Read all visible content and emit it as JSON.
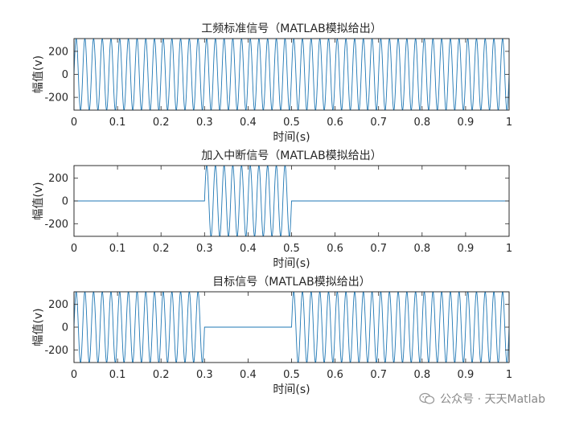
{
  "chart_data": [
    {
      "type": "line",
      "title": "工频标准信号（MATLAB模拟给出）",
      "xlabel": "时间(s)",
      "ylabel": "幅值(v)",
      "xlim": [
        0,
        1
      ],
      "ylim": [
        -311,
        311
      ],
      "xticks": [
        "0",
        "0.1",
        "0.2",
        "0.3",
        "0.4",
        "0.5",
        "0.6",
        "0.7",
        "0.8",
        "0.9",
        "1"
      ],
      "yticks": [
        "200",
        "0",
        "-200"
      ],
      "series": [
        {
          "amplitude": 311,
          "frequency_hz": 50,
          "segments": [
            {
              "start": 0,
              "end": 1,
              "state": "on"
            }
          ]
        }
      ]
    },
    {
      "type": "line",
      "title": "加入中断信号（MATLAB模拟给出）",
      "xlabel": "时间(s)",
      "ylabel": "幅值(v)",
      "xlim": [
        0,
        1
      ],
      "ylim": [
        -311,
        311
      ],
      "xticks": [
        "0",
        "0.1",
        "0.2",
        "0.3",
        "0.4",
        "0.5",
        "0.6",
        "0.7",
        "0.8",
        "0.9",
        "1"
      ],
      "yticks": [
        "200",
        "0",
        "-200"
      ],
      "series": [
        {
          "amplitude": 311,
          "frequency_hz": 50,
          "segments": [
            {
              "start": 0,
              "end": 0.3,
              "state": "off"
            },
            {
              "start": 0.3,
              "end": 0.5,
              "state": "on"
            },
            {
              "start": 0.5,
              "end": 1,
              "state": "off"
            }
          ]
        }
      ]
    },
    {
      "type": "line",
      "title": "目标信号（MATLAB模拟给出）",
      "xlabel": "时间(s)",
      "ylabel": "幅值(v)",
      "xlim": [
        0,
        1
      ],
      "ylim": [
        -311,
        311
      ],
      "xticks": [
        "0",
        "0.1",
        "0.2",
        "0.3",
        "0.4",
        "0.5",
        "0.6",
        "0.7",
        "0.8",
        "0.9",
        "1"
      ],
      "yticks": [
        "200",
        "0",
        "-200"
      ],
      "series": [
        {
          "amplitude": 311,
          "frequency_hz": 50,
          "segments": [
            {
              "start": 0,
              "end": 0.3,
              "state": "on"
            },
            {
              "start": 0.3,
              "end": 0.5,
              "state": "off"
            },
            {
              "start": 0.5,
              "end": 1,
              "state": "on"
            }
          ]
        }
      ]
    }
  ],
  "style": {
    "line_color": "#1f77b4",
    "axis_color": "#262626",
    "tick_color": "#262626"
  },
  "watermark": {
    "text": "公众号 · 天天Matlab",
    "icon": "wechat-icon"
  }
}
